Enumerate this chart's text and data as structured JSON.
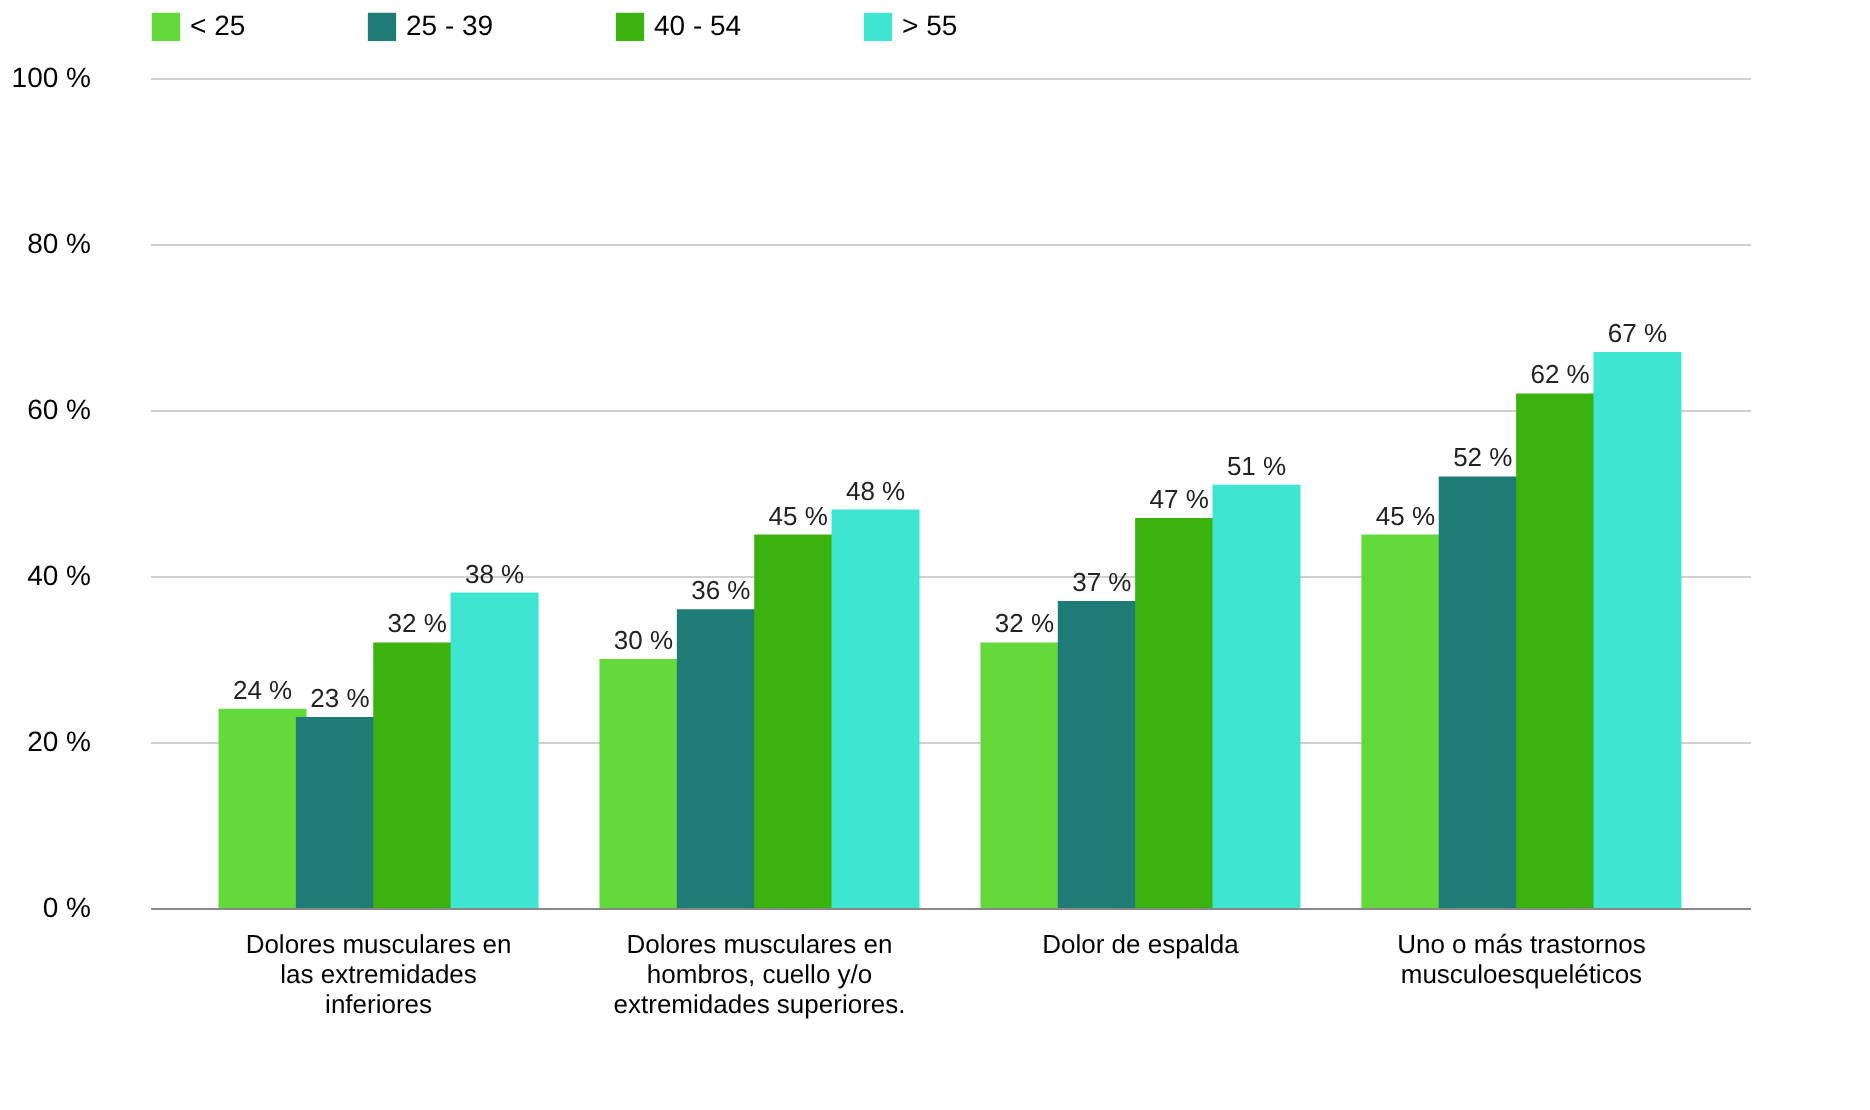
{
  "chart_data": {
    "type": "bar",
    "categories": [
      "Dolores musculares en las extremidades inferiores",
      "Dolores musculares en hombros, cuello y/o extremidades superiores.",
      "Dolor de espalda",
      "Uno o más trastornos musculoesqueléticos"
    ],
    "series": [
      {
        "name": "< 25",
        "color": "#63d93c",
        "values": [
          24,
          30,
          32,
          45
        ],
        "value_labels": [
          "24 %",
          "30 %",
          "32 %",
          "45 %"
        ]
      },
      {
        "name": "25 - 39",
        "color": "#1e7b76",
        "values": [
          23,
          36,
          37,
          52
        ],
        "value_labels": [
          "23 %",
          "36 %",
          "37 %",
          "52 %"
        ]
      },
      {
        "name": "40 - 54",
        "color": "#3cb20f",
        "values": [
          32,
          45,
          47,
          62
        ],
        "value_labels": [
          "32 %",
          "45 %",
          "47 %",
          "62 %"
        ]
      },
      {
        "name": "> 55",
        "color": "#3ee6d1",
        "values": [
          38,
          48,
          51,
          67
        ],
        "value_labels": [
          "38 %",
          "48 %",
          "51 %",
          "67 %"
        ]
      }
    ],
    "ylim": [
      0,
      100
    ],
    "yticks": [
      {
        "value": 0,
        "label": "0 %"
      },
      {
        "value": 20,
        "label": "20 %"
      },
      {
        "value": 40,
        "label": "40 %"
      },
      {
        "value": 60,
        "label": "60 %"
      },
      {
        "value": 80,
        "label": "80 %"
      },
      {
        "value": 100,
        "label": "100 %"
      }
    ],
    "grid": "y",
    "legend": "top"
  }
}
